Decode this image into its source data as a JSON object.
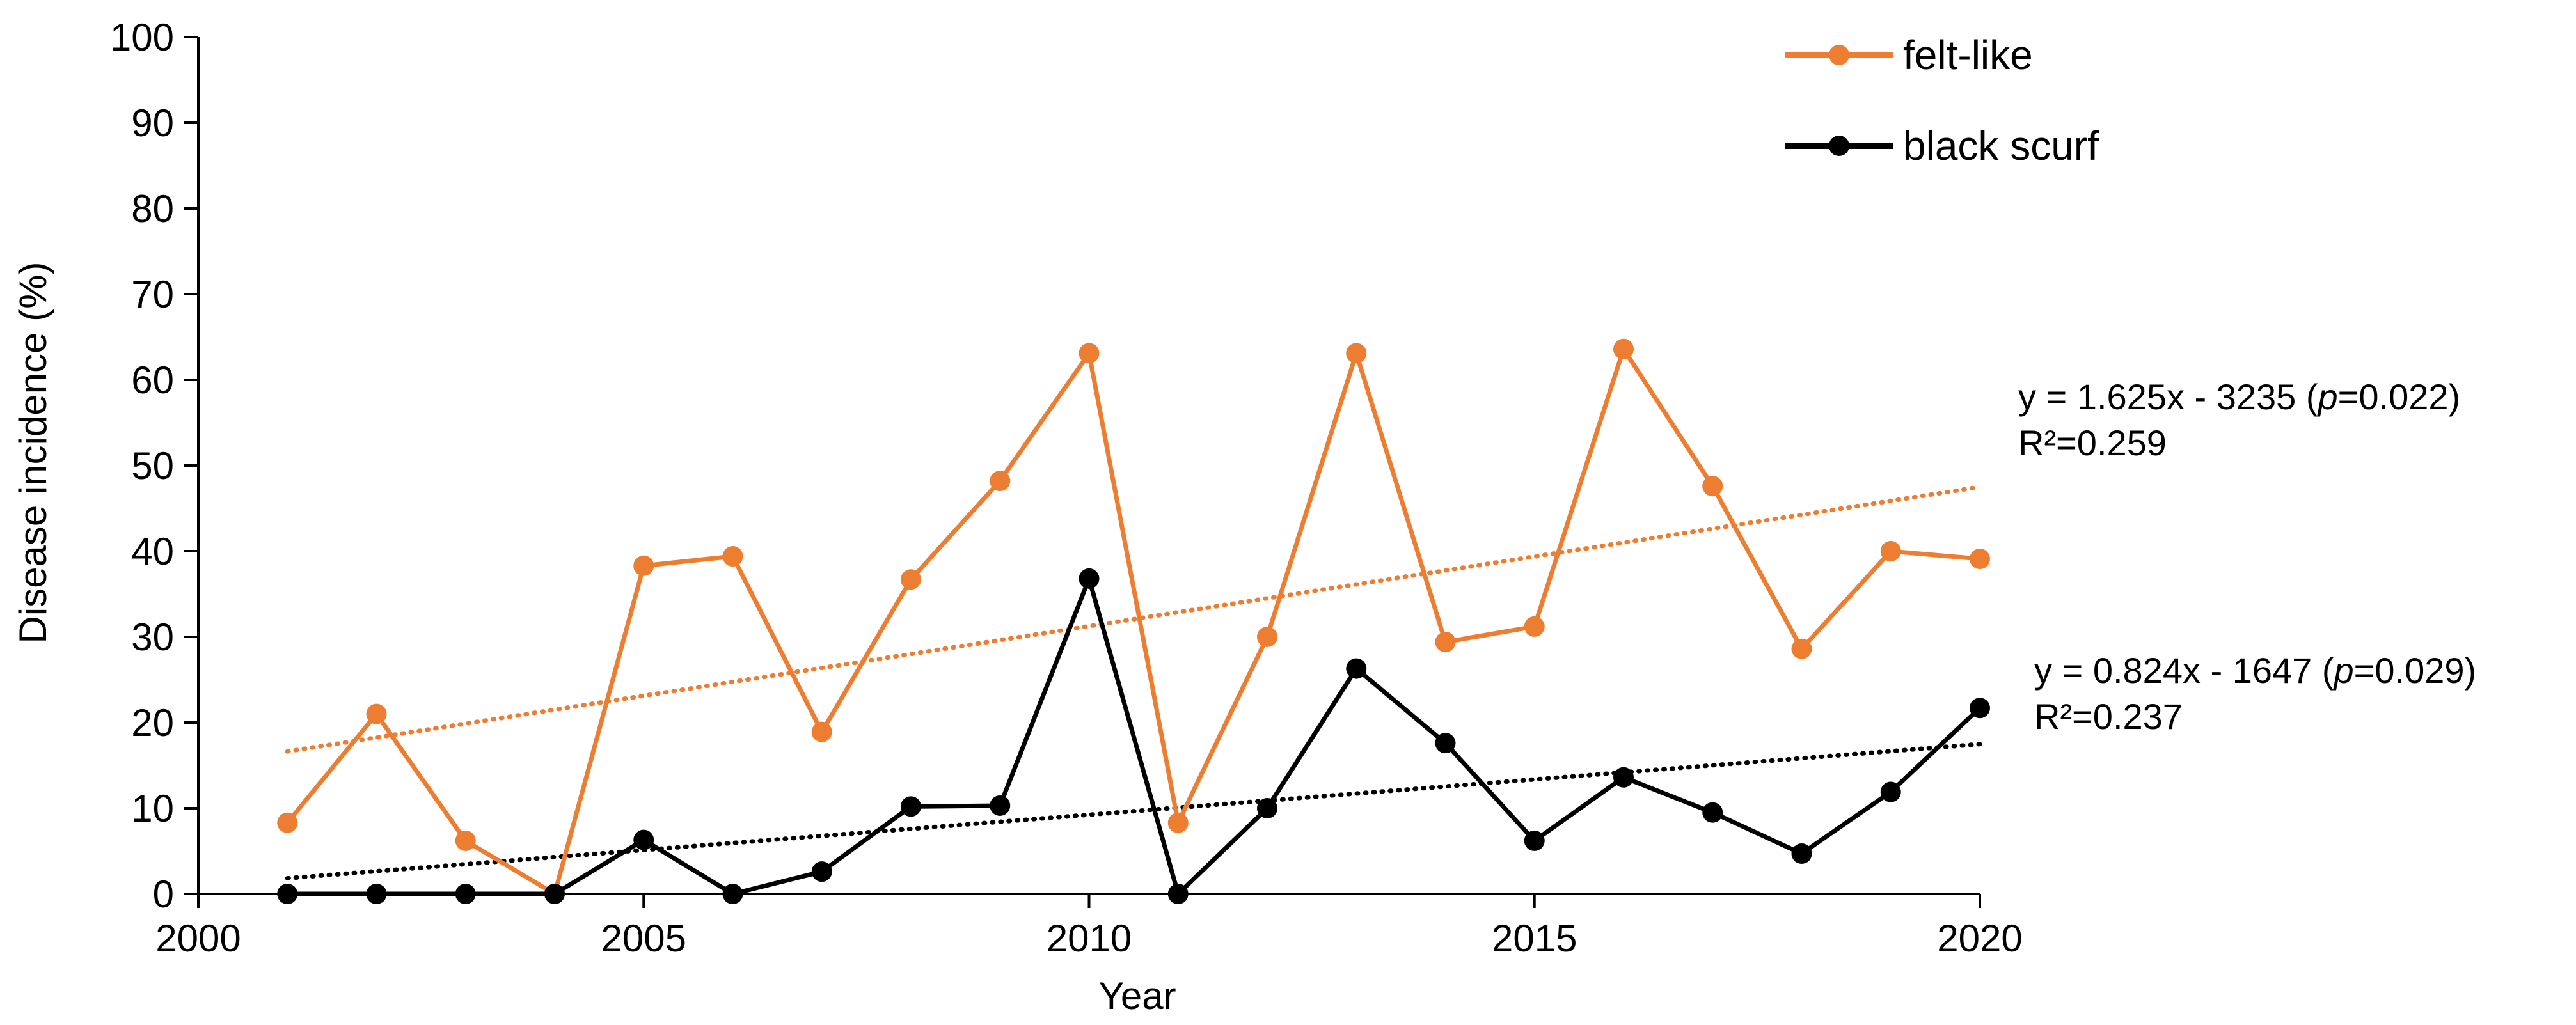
{
  "chart_data": {
    "type": "line",
    "title": "",
    "xlabel": "Year",
    "ylabel": "Disease incidence (%)",
    "xlim": [
      2000,
      2020
    ],
    "ylim": [
      0,
      100
    ],
    "x_ticks": [
      2000,
      2005,
      2010,
      2015,
      2020
    ],
    "y_ticks": [
      0,
      10,
      20,
      30,
      40,
      50,
      60,
      70,
      80,
      90,
      100
    ],
    "grid": false,
    "legend_position": "top-right",
    "x": [
      2001,
      2002,
      2003,
      2004,
      2005,
      2006,
      2007,
      2008,
      2009,
      2010,
      2011,
      2012,
      2013,
      2014,
      2015,
      2016,
      2017,
      2018,
      2019,
      2020
    ],
    "series": [
      {
        "name": "felt-like",
        "color": "#ED7D31",
        "values": [
          8.3,
          21.0,
          6.2,
          0.0,
          38.3,
          39.4,
          18.9,
          36.7,
          48.2,
          63.1,
          8.3,
          30.0,
          63.1,
          29.4,
          31.2,
          63.6,
          47.6,
          28.6,
          40.0,
          39.1
        ],
        "trend": {
          "slope": 1.625,
          "intercept": -3235,
          "equation": "y = 1.625x - 3235 (",
          "p_label": "p",
          "p_value": "=0.022)",
          "r2": "R²=0.259"
        }
      },
      {
        "name": "black scurf",
        "color": "#000000",
        "values": [
          0.0,
          0.0,
          0.0,
          0.0,
          6.3,
          0.0,
          2.6,
          10.2,
          10.3,
          36.8,
          0.0,
          10.0,
          26.3,
          17.6,
          6.2,
          13.6,
          9.5,
          4.7,
          11.9,
          21.7
        ],
        "trend": {
          "slope": 0.824,
          "intercept": -1647,
          "equation": "y = 0.824x - 1647 (",
          "p_label": "p",
          "p_value": "=0.029)",
          "r2": "R²=0.237"
        }
      }
    ]
  }
}
